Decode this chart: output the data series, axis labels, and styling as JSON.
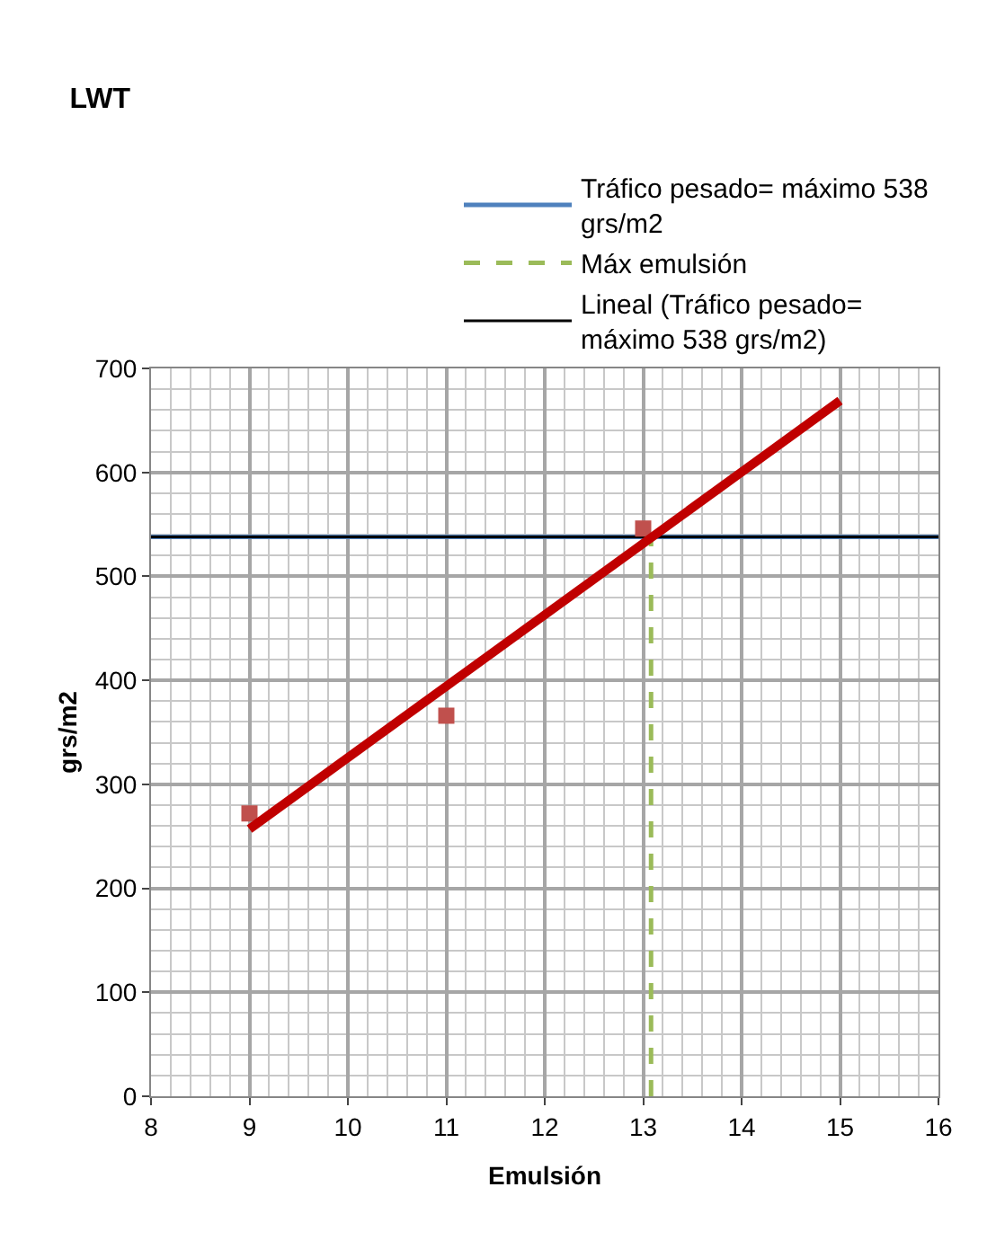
{
  "chart_data": {
    "type": "scatter",
    "title": "LWT",
    "xlabel": "Emulsión",
    "ylabel": "grs/m2",
    "xlim": [
      8,
      16
    ],
    "xticks": [
      8,
      9,
      10,
      11,
      12,
      13,
      14,
      15,
      16
    ],
    "ylim": [
      0,
      700
    ],
    "yticks": [
      0,
      100,
      200,
      300,
      400,
      500,
      600,
      700
    ],
    "grid": true,
    "legend": "top right",
    "series": [
      {
        "name": "Tráfico pesado= máximo 538 grs/m2",
        "type": "line",
        "color": "#4f81bd",
        "x": [
          8,
          16
        ],
        "values": [
          538,
          538
        ],
        "marker": "none",
        "line_style": "solid"
      },
      {
        "name": "Máx emulsión",
        "type": "line",
        "color": "#9bbb59",
        "x": [
          13.08,
          13.08
        ],
        "values": [
          0,
          538
        ],
        "marker": "none",
        "line_style": "dashed"
      },
      {
        "name": "Lineal (Tráfico pesado= máximo 538 grs/m2)",
        "type": "line",
        "color": "#000000",
        "x": [
          8,
          16
        ],
        "values": [
          538,
          538
        ],
        "marker": "none",
        "line_style": "solid"
      },
      {
        "color": "#c0504d",
        "x": [
          9,
          11,
          13
        ],
        "values": [
          272,
          366,
          546
        ],
        "marker": "square"
      },
      {
        "type": "line",
        "color": "#c00000",
        "x": [
          9,
          15
        ],
        "values": [
          257,
          669
        ],
        "marker": "none",
        "line_style": "solid"
      }
    ]
  }
}
